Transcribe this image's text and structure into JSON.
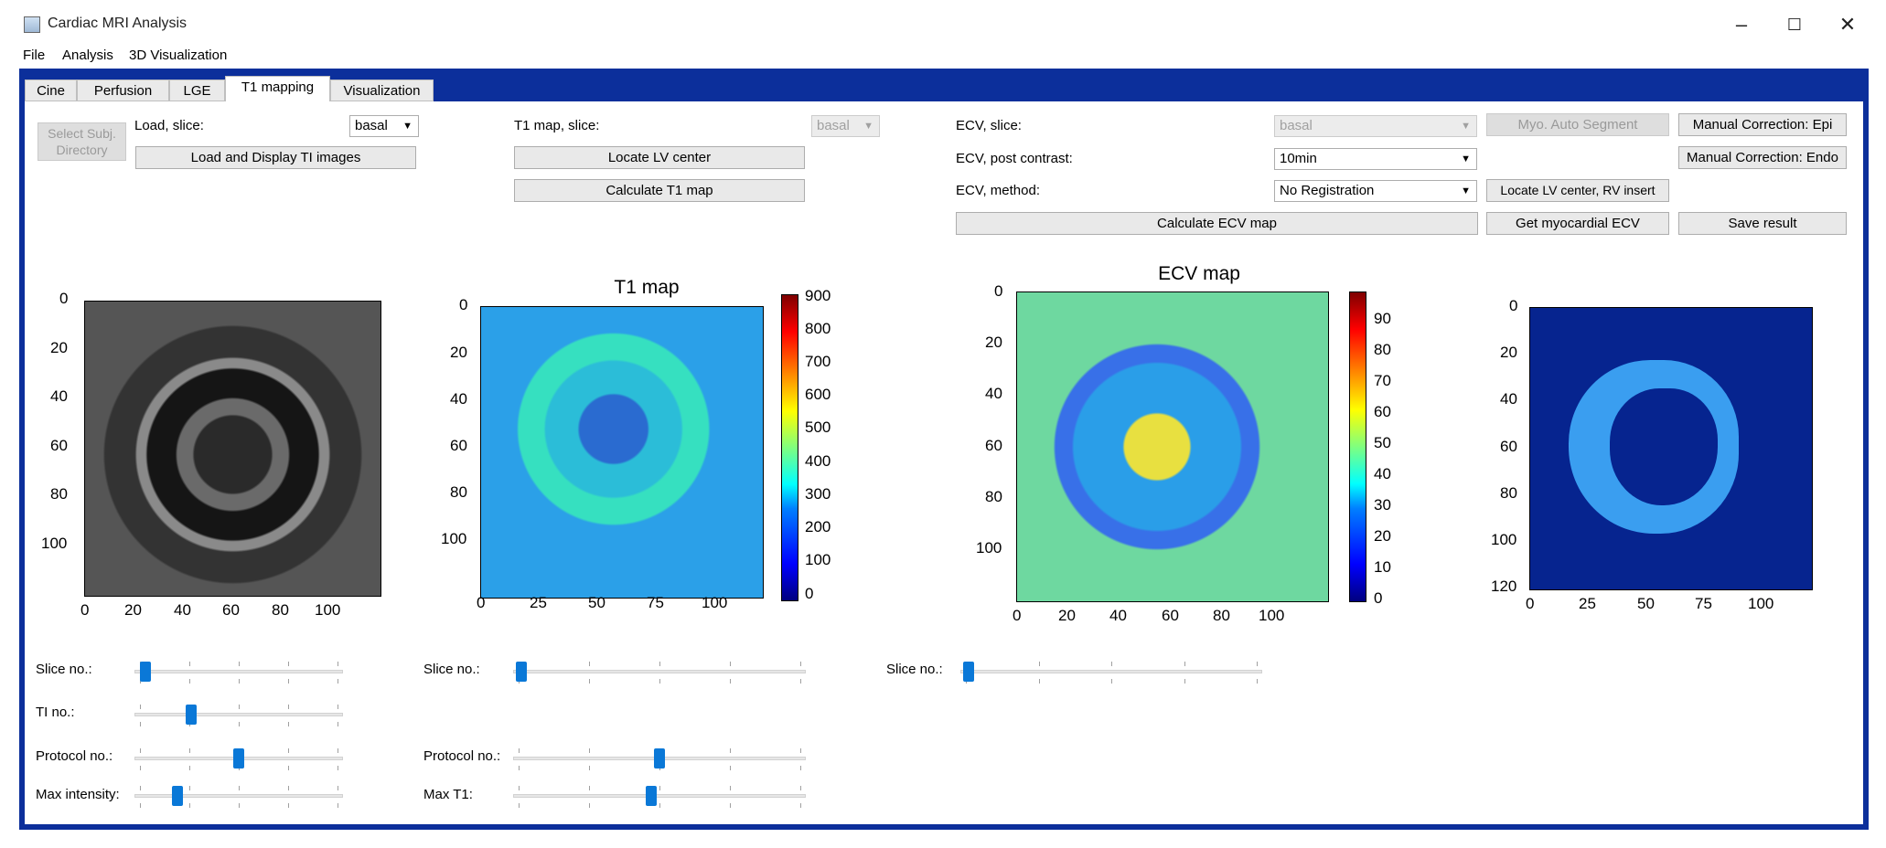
{
  "window": {
    "title": "Cardiac MRI Analysis",
    "controls": [
      "–",
      "☐",
      "✕"
    ]
  },
  "menu": [
    "File",
    "Analysis",
    "3D Visualization"
  ],
  "tabs": [
    "Cine",
    "Perfusion",
    "LGE",
    "T1 mapping",
    "Visualization"
  ],
  "active_tab": "T1 mapping",
  "load_section": {
    "select_button": "Select Subj. Directory",
    "load_slice_label": "Load, slice:",
    "slice_value": "basal",
    "load_button": "Load and Display TI images"
  },
  "t1_section": {
    "label": "T1 map, slice:",
    "slice_value": "basal",
    "locate_button": "Locate LV center",
    "calc_button": "Calculate T1 map"
  },
  "ecv_section": {
    "slice_label": "ECV, slice:",
    "slice_value": "basal",
    "post_label": "ECV, post contrast:",
    "post_value": "10min",
    "method_label": "ECV, method:",
    "method_value": "No Registration",
    "calc_button": "Calculate ECV map",
    "myo_button": "Myo. Auto Segment",
    "locate_button": "Locate LV center, RV insert",
    "get_button": "Get myocardial ECV",
    "manual_epi_button": "Manual Correction: Epi",
    "manual_endo_button": "Manual Correction: Endo",
    "save_button": "Save result"
  },
  "plots": {
    "raw": {
      "title": "",
      "xticks": [
        "0",
        "20",
        "40",
        "60",
        "80",
        "100"
      ],
      "yticks": [
        "0",
        "20",
        "40",
        "60",
        "80",
        "100"
      ]
    },
    "t1": {
      "title": "T1 map",
      "xticks": [
        "0",
        "25",
        "50",
        "75",
        "100"
      ],
      "yticks": [
        "0",
        "20",
        "40",
        "60",
        "80",
        "100"
      ],
      "colorbar": [
        "900",
        "800",
        "700",
        "600",
        "500",
        "400",
        "300",
        "200",
        "100",
        "0"
      ]
    },
    "ecv": {
      "title": "ECV map",
      "xticks": [
        "0",
        "20",
        "40",
        "60",
        "80",
        "100"
      ],
      "yticks": [
        "0",
        "20",
        "40",
        "60",
        "80",
        "100"
      ],
      "colorbar": [
        "90",
        "80",
        "70",
        "60",
        "50",
        "40",
        "30",
        "20",
        "10",
        "0"
      ]
    },
    "seg": {
      "title": "",
      "xticks": [
        "0",
        "25",
        "50",
        "75",
        "100"
      ],
      "yticks": [
        "0",
        "20",
        "40",
        "60",
        "80",
        "100",
        "120"
      ]
    }
  },
  "sliders_left": [
    {
      "label": "Slice no.:",
      "position": 0.03
    },
    {
      "label": "TI no.:",
      "position": 0.26
    },
    {
      "label": "Protocol no.:",
      "position": 0.5
    },
    {
      "label": "Max intensity:",
      "position": 0.19
    }
  ],
  "sliders_mid": [
    {
      "label": "Slice no.:",
      "position": 0.01
    },
    {
      "label": "Protocol no.:",
      "position": 0.5
    },
    {
      "label": "Max T1:",
      "position": 0.47
    }
  ],
  "sliders_right": [
    {
      "label": "Slice no.:",
      "position": 0.01
    }
  ]
}
